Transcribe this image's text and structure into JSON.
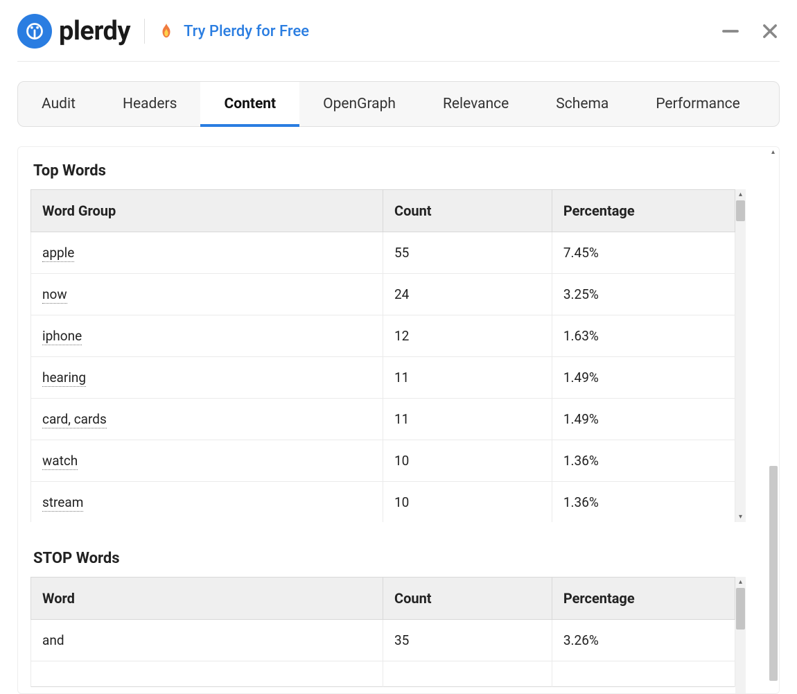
{
  "colors": {
    "accent": "#2a7de1",
    "text": "#222222",
    "border": "#e0e0e0",
    "header_bg": "#efefef",
    "row_border": "#eaeaea",
    "scroll_thumb": "#c4c4c4"
  },
  "header": {
    "brand": "plerdy",
    "cta": "Try Plerdy for Free"
  },
  "tabs": [
    {
      "label": "Audit",
      "active": false
    },
    {
      "label": "Headers",
      "active": false
    },
    {
      "label": "Content",
      "active": true
    },
    {
      "label": "OpenGraph",
      "active": false
    },
    {
      "label": "Relevance",
      "active": false
    },
    {
      "label": "Schema",
      "active": false
    },
    {
      "label": "Performance",
      "active": false
    }
  ],
  "top_words": {
    "title": "Top Words",
    "columns": [
      "Word Group",
      "Count",
      "Percentage"
    ],
    "rows": [
      {
        "word": "apple",
        "count": 55,
        "percentage": "7.45%"
      },
      {
        "word": "now",
        "count": 24,
        "percentage": "3.25%"
      },
      {
        "word": "iphone",
        "count": 12,
        "percentage": "1.63%"
      },
      {
        "word": "hearing",
        "count": 11,
        "percentage": "1.49%"
      },
      {
        "word": "card, cards",
        "count": 11,
        "percentage": "1.49%"
      },
      {
        "word": "watch",
        "count": 10,
        "percentage": "1.36%"
      },
      {
        "word": "stream",
        "count": 10,
        "percentage": "1.36%"
      }
    ]
  },
  "stop_words": {
    "title": "STOP Words",
    "columns": [
      "Word",
      "Count",
      "Percentage"
    ],
    "rows": [
      {
        "word": "and",
        "count": 35,
        "percentage": "3.26%"
      }
    ]
  }
}
